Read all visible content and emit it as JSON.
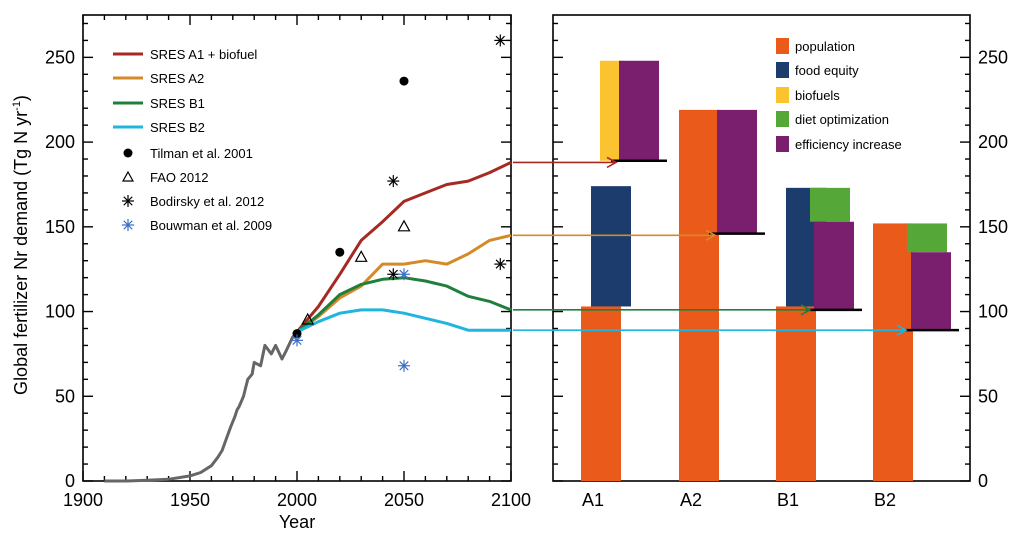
{
  "chart_data": [
    {
      "type": "line",
      "xlabel": "Year",
      "ylabel": "Global fertilizer Nr demand (Tg N yr",
      "ylabel_sup": "-1",
      "ylabel_close": ")",
      "xlim": [
        1900,
        2100
      ],
      "ylim": [
        0,
        275
      ],
      "x_ticks": [
        "1900",
        "1950",
        "2000",
        "2050",
        "2100"
      ],
      "y_ticks": [
        "0",
        "50",
        "100",
        "150",
        "200",
        "250"
      ],
      "colors": {
        "historical": "#666666",
        "a1": "#a52a23",
        "a2": "#d58a29",
        "b1": "#217f3c",
        "b2": "#20b5df",
        "bouwman": "#3a6ec4"
      },
      "historical": {
        "x": [
          1910,
          1920,
          1930,
          1940,
          1950,
          1955,
          1960,
          1963,
          1965,
          1967,
          1969,
          1971,
          1972,
          1973,
          1975,
          1976,
          1977,
          1979,
          1980,
          1983,
          1985,
          1988,
          1990,
          1993,
          1995,
          1998,
          2000
        ],
        "y": [
          0,
          0,
          0.5,
          1,
          3,
          5,
          9,
          14,
          18,
          25,
          32,
          38,
          42,
          44,
          50,
          55,
          60,
          63,
          70,
          68,
          80,
          75,
          80,
          72,
          77,
          85,
          87
        ]
      },
      "series": [
        {
          "name": "SRES A1 + biofuel",
          "x": [
            2000,
            2010,
            2020,
            2030,
            2040,
            2050,
            2060,
            2070,
            2080,
            2090,
            2100
          ],
          "values": [
            88,
            103,
            122,
            142,
            153,
            165,
            170,
            175,
            177,
            182,
            188
          ]
        },
        {
          "name": "SRES A2",
          "x": [
            2000,
            2010,
            2020,
            2030,
            2040,
            2050,
            2060,
            2070,
            2080,
            2090,
            2100
          ],
          "values": [
            88,
            97,
            108,
            115,
            128,
            128,
            130,
            128,
            134,
            142,
            145
          ]
        },
        {
          "name": "SRES B1",
          "x": [
            2000,
            2010,
            2020,
            2030,
            2040,
            2050,
            2060,
            2070,
            2080,
            2090,
            2100
          ],
          "values": [
            88,
            98,
            110,
            116,
            119,
            120,
            118,
            115,
            109,
            106,
            101
          ]
        },
        {
          "name": "SRES B2",
          "x": [
            2000,
            2010,
            2020,
            2030,
            2040,
            2050,
            2060,
            2070,
            2080,
            2090,
            2100
          ],
          "values": [
            88,
            94,
            99,
            101,
            101,
            99,
            96,
            93,
            89,
            89,
            89
          ]
        }
      ],
      "points": [
        {
          "name": "Tilman et al. 2001",
          "marker": "circle",
          "data": [
            [
              2000,
              87
            ],
            [
              2020,
              135
            ],
            [
              2050,
              236
            ]
          ]
        },
        {
          "name": "FAO 2012",
          "marker": "triangle",
          "data": [
            [
              2005,
              95
            ],
            [
              2030,
              132
            ],
            [
              2050,
              150
            ]
          ]
        },
        {
          "name": "Bodirsky et al. 2012",
          "marker": "asterisk",
          "data": [
            [
              2045,
              177
            ],
            [
              2045,
              122
            ],
            [
              2095,
              260
            ],
            [
              2095,
              128
            ]
          ]
        },
        {
          "name": "Bouwman et al. 2009",
          "marker": "asterisk",
          "data": [
            [
              2000,
              83
            ],
            [
              2050,
              122
            ],
            [
              2050,
              68
            ]
          ]
        }
      ]
    },
    {
      "type": "bar",
      "categories": [
        "A1",
        "A2",
        "B1",
        "B2"
      ],
      "ylim": [
        0,
        275
      ],
      "y_ticks": [
        "0",
        "50",
        "100",
        "150",
        "200",
        "250"
      ],
      "legend": [
        {
          "name": "population",
          "color": "#ea5a1a"
        },
        {
          "name": "food equity",
          "color": "#1b3c6c"
        },
        {
          "name": "biofuels",
          "color": "#fbc330"
        },
        {
          "name": "diet optimization",
          "color": "#55a838"
        },
        {
          "name": "efficiency increase",
          "color": "#7a1f6d"
        }
      ],
      "bars": [
        {
          "category": "A1",
          "population": [
            0,
            103
          ],
          "food_equity": [
            103,
            174
          ],
          "biofuels": [
            189,
            248
          ],
          "efficiency_increase": [
            189,
            248
          ],
          "endpoint": 189
        },
        {
          "category": "A2",
          "population": [
            0,
            219
          ],
          "efficiency_increase": [
            146,
            219
          ],
          "endpoint": 146
        },
        {
          "category": "B1",
          "population": [
            0,
            103
          ],
          "food_equity": [
            103,
            173
          ],
          "diet_optimization": [
            153,
            173
          ],
          "efficiency_increase": [
            101,
            153
          ],
          "endpoint": 101
        },
        {
          "category": "B2",
          "population": [
            0,
            152
          ],
          "diet_optimization": [
            135,
            152
          ],
          "efficiency_increase": [
            89,
            135
          ],
          "endpoint": 89
        }
      ]
    }
  ]
}
